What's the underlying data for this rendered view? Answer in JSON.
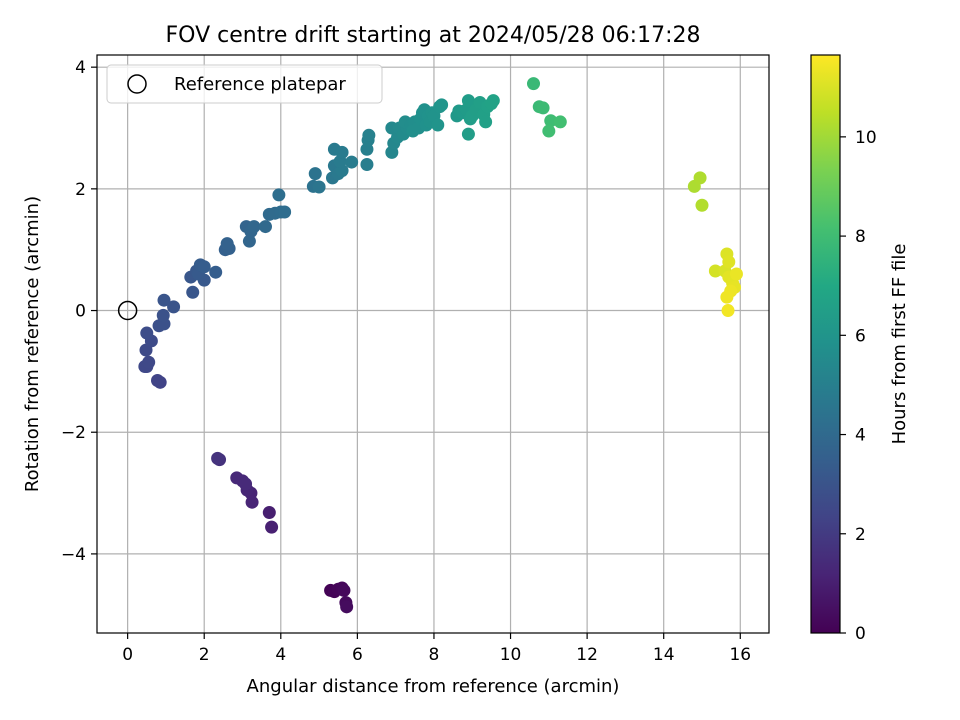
{
  "chart_data": {
    "type": "scatter",
    "title": "FOV centre drift starting at 2024/05/28 06:17:28",
    "xlabel": "Angular distance from reference (arcmin)",
    "ylabel": "Rotation from reference (arcmin)",
    "xlim": [
      -0.8,
      16.75
    ],
    "ylim": [
      -5.3,
      4.2
    ],
    "xticks": [
      0,
      2,
      4,
      6,
      8,
      10,
      12,
      14,
      16
    ],
    "yticks": [
      -4,
      -2,
      0,
      2,
      4
    ],
    "grid": true,
    "legend": {
      "placement": "top-left",
      "entries": [
        {
          "label": "Reference platepar",
          "marker": "open-circle"
        }
      ]
    },
    "reference_point": {
      "x": 0,
      "y": 0,
      "label": "Reference platepar"
    },
    "colorbar": {
      "label": "Hours from first FF file",
      "colormap": "viridis",
      "range": [
        0,
        11.65
      ],
      "ticks": [
        0,
        2,
        4,
        6,
        8,
        10
      ]
    },
    "points": [
      [
        5.3,
        -4.6,
        0.05
      ],
      [
        5.4,
        -4.62,
        0.1
      ],
      [
        5.5,
        -4.58,
        0.15
      ],
      [
        5.6,
        -4.56,
        0.2
      ],
      [
        5.65,
        -4.6,
        0.25
      ],
      [
        5.7,
        -4.8,
        0.3
      ],
      [
        5.72,
        -4.87,
        0.35
      ],
      [
        3.7,
        -3.32,
        1.0
      ],
      [
        3.76,
        -3.56,
        1.05
      ],
      [
        3.22,
        -3.0,
        1.15
      ],
      [
        3.25,
        -3.15,
        1.2
      ],
      [
        3.12,
        -2.95,
        1.25
      ],
      [
        3.0,
        -2.8,
        1.3
      ],
      [
        2.85,
        -2.75,
        1.35
      ],
      [
        3.08,
        -2.85,
        1.4
      ],
      [
        2.4,
        -2.45,
        1.65
      ],
      [
        2.35,
        -2.43,
        1.7
      ],
      [
        0.85,
        -1.18,
        2.3
      ],
      [
        0.78,
        -1.15,
        2.35
      ],
      [
        0.5,
        -0.92,
        2.45
      ],
      [
        0.45,
        -0.92,
        2.5
      ],
      [
        0.55,
        -0.85,
        2.55
      ],
      [
        0.48,
        -0.65,
        2.6
      ],
      [
        0.62,
        -0.5,
        2.65
      ],
      [
        0.5,
        -0.37,
        2.7
      ],
      [
        0.82,
        -0.25,
        2.85
      ],
      [
        0.95,
        -0.22,
        2.9
      ],
      [
        0.93,
        -0.08,
        2.95
      ],
      [
        1.2,
        0.06,
        3.0
      ],
      [
        0.95,
        0.17,
        3.05
      ],
      [
        1.7,
        0.3,
        3.1
      ],
      [
        1.65,
        0.55,
        3.15
      ],
      [
        1.8,
        0.65,
        3.2
      ],
      [
        2.0,
        0.5,
        3.25
      ],
      [
        1.85,
        0.6,
        3.3
      ],
      [
        1.9,
        0.75,
        3.35
      ],
      [
        2.0,
        0.72,
        3.4
      ],
      [
        2.3,
        0.63,
        3.45
      ],
      [
        2.55,
        1.0,
        3.55
      ],
      [
        2.65,
        1.02,
        3.6
      ],
      [
        2.6,
        1.1,
        3.62
      ],
      [
        3.1,
        1.38,
        3.75
      ],
      [
        3.18,
        1.14,
        3.8
      ],
      [
        3.22,
        1.3,
        3.82
      ],
      [
        3.3,
        1.38,
        3.85
      ],
      [
        3.6,
        1.38,
        3.95
      ],
      [
        3.7,
        1.58,
        4.0
      ],
      [
        3.85,
        1.6,
        4.05
      ],
      [
        4.0,
        1.62,
        4.1
      ],
      [
        4.1,
        1.62,
        4.15
      ],
      [
        3.95,
        1.9,
        4.2
      ],
      [
        4.85,
        2.04,
        4.4
      ],
      [
        4.9,
        2.25,
        4.45
      ],
      [
        5.0,
        2.03,
        4.5
      ],
      [
        5.35,
        2.18,
        4.6
      ],
      [
        5.4,
        2.38,
        4.65
      ],
      [
        5.5,
        2.25,
        4.7
      ],
      [
        5.4,
        2.65,
        4.75
      ],
      [
        5.6,
        2.3,
        4.78
      ],
      [
        5.55,
        2.45,
        4.8
      ],
      [
        5.6,
        2.6,
        4.82
      ],
      [
        5.85,
        2.44,
        4.85
      ],
      [
        6.25,
        2.4,
        4.95
      ],
      [
        6.25,
        2.65,
        5.0
      ],
      [
        6.28,
        2.8,
        5.05
      ],
      [
        6.3,
        2.88,
        5.1
      ],
      [
        6.9,
        2.6,
        5.3
      ],
      [
        6.95,
        2.75,
        5.35
      ],
      [
        6.9,
        3.0,
        5.4
      ],
      [
        7.05,
        2.85,
        5.45
      ],
      [
        7.1,
        3.0,
        5.5
      ],
      [
        7.2,
        2.9,
        5.55
      ],
      [
        7.3,
        3.0,
        5.6
      ],
      [
        7.25,
        3.1,
        5.62
      ],
      [
        7.4,
        3.05,
        5.65
      ],
      [
        7.5,
        3.1,
        5.7
      ],
      [
        7.45,
        2.95,
        5.72
      ],
      [
        7.6,
        3.0,
        5.75
      ],
      [
        7.65,
        3.15,
        5.78
      ],
      [
        7.7,
        3.25,
        5.8
      ],
      [
        7.75,
        3.3,
        5.82
      ],
      [
        7.8,
        3.05,
        5.85
      ],
      [
        7.85,
        3.2,
        5.88
      ],
      [
        7.9,
        3.1,
        5.9
      ],
      [
        7.95,
        3.25,
        5.92
      ],
      [
        8.0,
        3.2,
        5.95
      ],
      [
        8.1,
        3.05,
        5.98
      ],
      [
        8.15,
        3.35,
        6.0
      ],
      [
        8.2,
        3.38,
        6.02
      ],
      [
        8.6,
        3.2,
        6.2
      ],
      [
        8.65,
        3.28,
        6.25
      ],
      [
        8.75,
        3.25,
        6.3
      ],
      [
        8.85,
        3.3,
        6.35
      ],
      [
        8.9,
        3.45,
        6.4
      ],
      [
        8.95,
        3.15,
        6.42
      ],
      [
        8.9,
        2.9,
        6.45
      ],
      [
        9.0,
        3.2,
        6.48
      ],
      [
        9.1,
        3.3,
        6.5
      ],
      [
        9.2,
        3.42,
        6.55
      ],
      [
        9.3,
        3.22,
        6.58
      ],
      [
        9.35,
        3.1,
        6.6
      ],
      [
        9.4,
        3.35,
        6.62
      ],
      [
        9.55,
        3.45,
        6.68
      ],
      [
        9.5,
        3.4,
        6.7
      ],
      [
        10.6,
        3.73,
        7.8
      ],
      [
        10.75,
        3.35,
        7.85
      ],
      [
        10.85,
        3.33,
        7.9
      ],
      [
        11.05,
        3.12,
        8.0
      ],
      [
        11.0,
        2.95,
        8.05
      ],
      [
        11.3,
        3.1,
        8.1
      ],
      [
        14.8,
        2.04,
        10.2
      ],
      [
        14.95,
        2.18,
        10.25
      ],
      [
        15.0,
        1.73,
        10.3
      ],
      [
        15.35,
        0.65,
        10.9
      ],
      [
        15.6,
        0.65,
        11.0
      ],
      [
        15.65,
        0.93,
        11.05
      ],
      [
        15.7,
        0.8,
        11.1
      ],
      [
        15.7,
        0.55,
        11.15
      ],
      [
        15.8,
        0.45,
        11.2
      ],
      [
        15.85,
        0.38,
        11.25
      ],
      [
        15.9,
        0.6,
        11.3
      ],
      [
        15.75,
        0.32,
        11.35
      ],
      [
        15.65,
        0.22,
        11.4
      ],
      [
        15.68,
        0.0,
        11.45
      ]
    ]
  }
}
